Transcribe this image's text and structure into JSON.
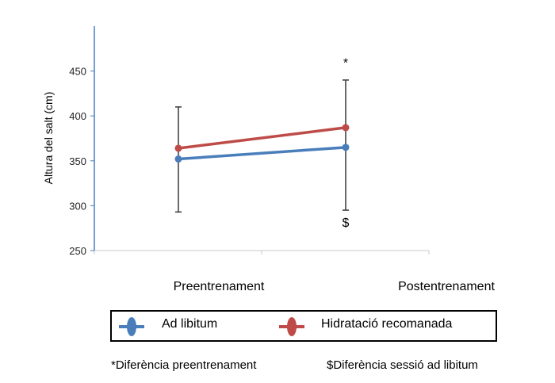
{
  "chart_data": {
    "type": "line",
    "ylabel": "Altura del salt (cm)",
    "ylim": [
      250,
      500
    ],
    "yticks": [
      250,
      300,
      350,
      400,
      450
    ],
    "categories": [
      "Preentrenament",
      "Postentrenament"
    ],
    "series": [
      {
        "name": "Ad libitum",
        "color": "#4a7ebb",
        "values": [
          352,
          365
        ],
        "error_low": [
          293,
          295
        ],
        "error_high": [
          410,
          440
        ]
      },
      {
        "name": "Hidratació recomanada",
        "color": "#be4b48",
        "values": [
          364,
          387
        ]
      }
    ],
    "annotations": [
      {
        "text": "*",
        "category": 1,
        "value": 460
      },
      {
        "text": "$",
        "category": 1,
        "value": 282
      }
    ],
    "grid": false,
    "legend_position": "bottom"
  },
  "footnotes": {
    "star": "*Diferència preentrenament",
    "dollar": "$Diferència sessió ad libitum"
  }
}
